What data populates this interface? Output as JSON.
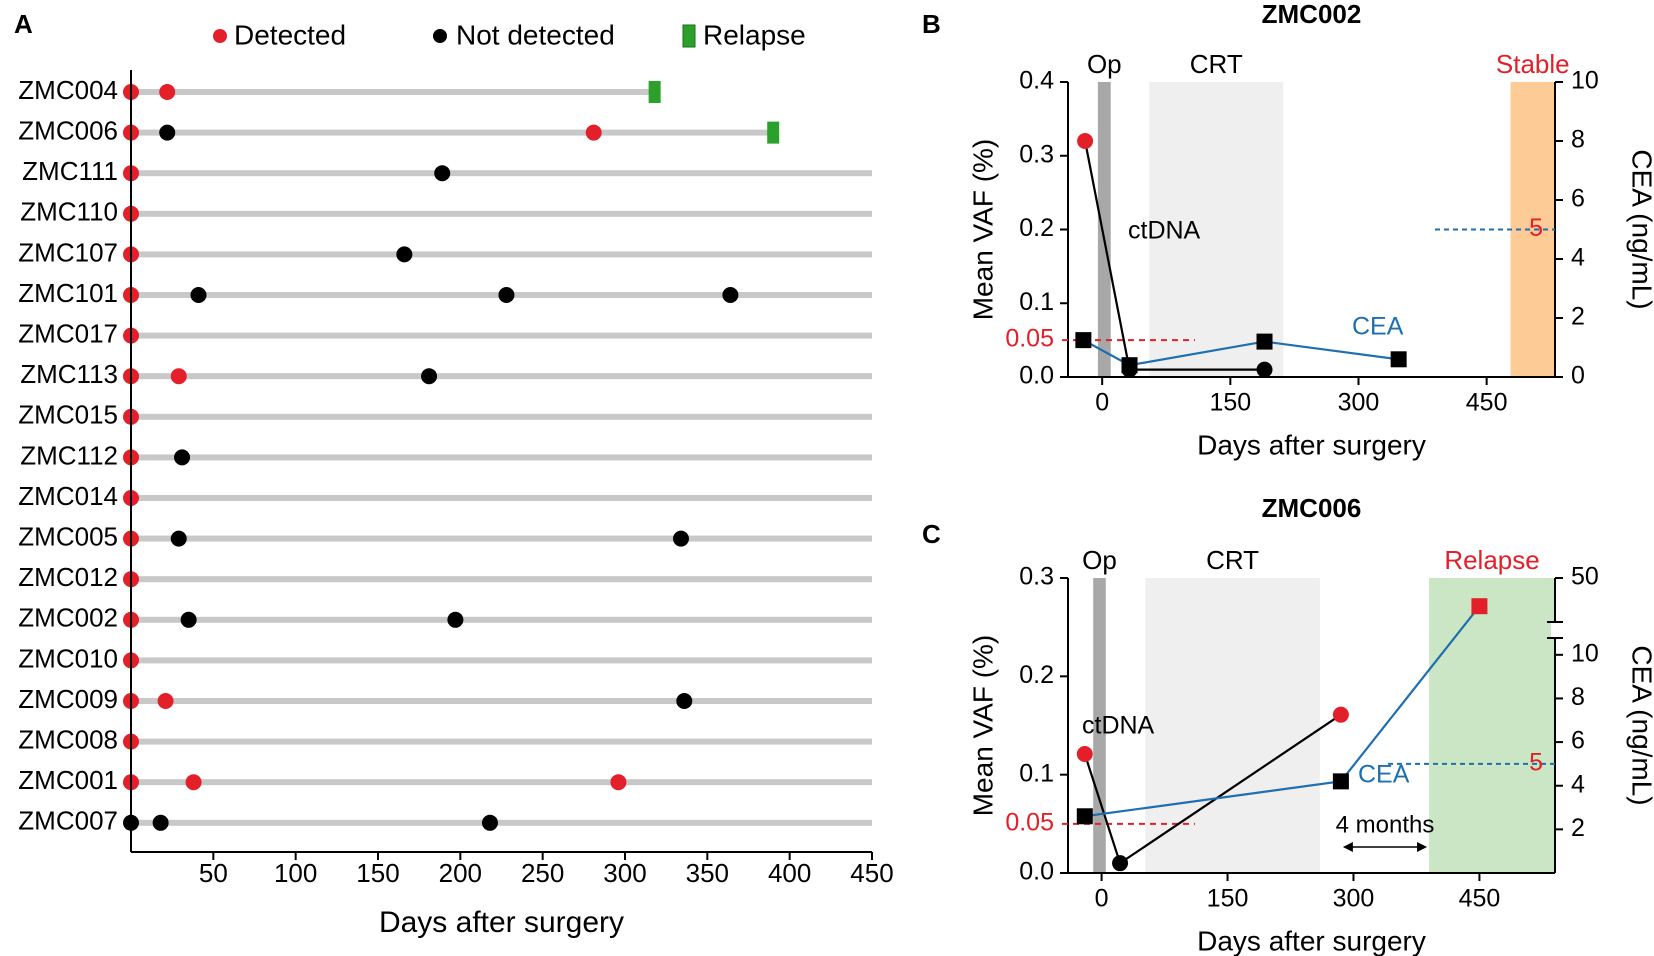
{
  "colors": {
    "detected": "#e3202a",
    "not_detected": "#000000",
    "relapse_marker": "#2ca02c",
    "track": "#c8c8c8",
    "op_shade": "#a8a8a8",
    "crt_shade": "#efefef",
    "stable_shade": "#fdcb96",
    "relapse_shade": "#cbe6c4",
    "cea_line": "#1f6fb0",
    "red_text": "#e3202a"
  },
  "chart_data": [
    {
      "panel": "A",
      "type": "scatter",
      "title": "",
      "xlabel": "Days after surgery",
      "ylabel": "",
      "xlim": [
        -1,
        450
      ],
      "xticks": [
        50,
        100,
        150,
        200,
        250,
        300,
        350,
        400,
        450
      ],
      "grid": false,
      "legend_position": "top",
      "legend": [
        {
          "label": "Detected",
          "symbol": "circle",
          "color": "#e3202a"
        },
        {
          "label": "Not detected",
          "symbol": "circle",
          "color": "#000000"
        },
        {
          "label": "Relapse",
          "symbol": "bar",
          "color": "#2ca02c"
        }
      ],
      "patients": [
        {
          "id": "ZMC004",
          "track_end": 318,
          "relapse": 318,
          "detected": [
            0,
            22
          ],
          "not_detected": []
        },
        {
          "id": "ZMC006",
          "track_end": 390,
          "relapse": 390,
          "detected": [
            0,
            281
          ],
          "not_detected": [
            22
          ]
        },
        {
          "id": "ZMC111",
          "track_end": 450,
          "relapse": null,
          "detected": [
            0
          ],
          "not_detected": [
            189
          ]
        },
        {
          "id": "ZMC110",
          "track_end": 450,
          "relapse": null,
          "detected": [
            0
          ],
          "not_detected": []
        },
        {
          "id": "ZMC107",
          "track_end": 450,
          "relapse": null,
          "detected": [
            0
          ],
          "not_detected": [
            166
          ]
        },
        {
          "id": "ZMC101",
          "track_end": 450,
          "relapse": null,
          "detected": [
            0
          ],
          "not_detected": [
            41,
            228,
            364
          ]
        },
        {
          "id": "ZMC017",
          "track_end": 450,
          "relapse": null,
          "detected": [
            0
          ],
          "not_detected": []
        },
        {
          "id": "ZMC113",
          "track_end": 450,
          "relapse": null,
          "detected": [
            0,
            29
          ],
          "not_detected": [
            181
          ]
        },
        {
          "id": "ZMC015",
          "track_end": 450,
          "relapse": null,
          "detected": [
            0
          ],
          "not_detected": []
        },
        {
          "id": "ZMC112",
          "track_end": 450,
          "relapse": null,
          "detected": [
            0
          ],
          "not_detected": [
            31
          ]
        },
        {
          "id": "ZMC014",
          "track_end": 450,
          "relapse": null,
          "detected": [
            0
          ],
          "not_detected": []
        },
        {
          "id": "ZMC005",
          "track_end": 450,
          "relapse": null,
          "detected": [
            0
          ],
          "not_detected": [
            29,
            334
          ]
        },
        {
          "id": "ZMC012",
          "track_end": 450,
          "relapse": null,
          "detected": [
            0
          ],
          "not_detected": []
        },
        {
          "id": "ZMC002",
          "track_end": 450,
          "relapse": null,
          "detected": [
            0
          ],
          "not_detected": [
            35,
            197
          ]
        },
        {
          "id": "ZMC010",
          "track_end": 450,
          "relapse": null,
          "detected": [
            0
          ],
          "not_detected": []
        },
        {
          "id": "ZMC009",
          "track_end": 450,
          "relapse": null,
          "detected": [
            0,
            21
          ],
          "not_detected": [
            336
          ]
        },
        {
          "id": "ZMC008",
          "track_end": 450,
          "relapse": null,
          "detected": [
            0
          ],
          "not_detected": []
        },
        {
          "id": "ZMC001",
          "track_end": 450,
          "relapse": null,
          "detected": [
            0,
            38,
            296
          ],
          "not_detected": []
        },
        {
          "id": "ZMC007",
          "track_end": 450,
          "relapse": null,
          "detected": [],
          "not_detected": [
            0,
            18,
            218
          ]
        }
      ]
    },
    {
      "panel": "B",
      "type": "line",
      "title": "ZMC002",
      "xlabel": "Days after surgery",
      "ylabel": "Mean VAF (%)",
      "y2label": "CEA (ng/mL)",
      "xlim": [
        -40,
        530
      ],
      "xticks": [
        0,
        150,
        300,
        450
      ],
      "ylim": [
        0,
        0.4
      ],
      "yticks": [
        "0.0",
        "0.1",
        "0.2",
        "0.3",
        "0.4"
      ],
      "y2lim": [
        0,
        10
      ],
      "y2ticks": [
        "0",
        "2",
        "4",
        "6",
        "8",
        "10"
      ],
      "vaf_threshold_label": "0.05",
      "vaf_threshold": 0.05,
      "cea_threshold_label": "5",
      "cea_threshold": 5,
      "periods": [
        {
          "label": "Op",
          "start": -5,
          "end": 10,
          "kind": "op"
        },
        {
          "label": "CRT",
          "start": 55,
          "end": 212,
          "kind": "crt"
        },
        {
          "label": "Stable",
          "start": 478,
          "end": 530,
          "kind": "stable"
        }
      ],
      "series": [
        {
          "name": "ctDNA",
          "axis": "left",
          "marker": "circle",
          "x": [
            -20,
            32,
            190
          ],
          "y": [
            0.32,
            0.01,
            0.01
          ],
          "marker_colors": [
            "#e3202a",
            "#000000",
            "#000000"
          ]
        },
        {
          "name": "CEA",
          "axis": "right",
          "marker": "square",
          "x": [
            -22,
            32,
            190,
            347
          ],
          "y": [
            1.25,
            0.4,
            1.2,
            0.6
          ]
        }
      ]
    },
    {
      "panel": "C",
      "type": "line",
      "title": "ZMC006",
      "xlabel": "Days after surgery",
      "ylabel": "Mean VAF (%)",
      "y2label": "CEA (ng/mL)",
      "xlim": [
        -40,
        540
      ],
      "xticks": [
        0,
        150,
        300,
        450
      ],
      "ylim": [
        0,
        0.3
      ],
      "yticks": [
        "0.0",
        "0.1",
        "0.2",
        "0.3"
      ],
      "y2ticks": [
        "2",
        "4",
        "6",
        "8",
        "10",
        "50"
      ],
      "y2_note": "broken axis: 0-11 linear, upper segment up to 50",
      "vaf_threshold_label": "0.05",
      "vaf_threshold": 0.05,
      "cea_threshold_label": "5",
      "cea_threshold": 5,
      "interval_annotation": {
        "label": "4 months",
        "start": 285,
        "end": 390
      },
      "periods": [
        {
          "label": "Op",
          "start": -10,
          "end": 5,
          "kind": "op"
        },
        {
          "label": "CRT",
          "start": 52,
          "end": 260,
          "kind": "crt"
        },
        {
          "label": "Relapse",
          "start": 390,
          "end": 540,
          "kind": "relapse"
        }
      ],
      "series": [
        {
          "name": "ctDNA",
          "axis": "left",
          "marker": "circle",
          "x": [
            -20,
            22,
            285
          ],
          "y": [
            0.121,
            0.01,
            0.161
          ],
          "marker_colors": [
            "#e3202a",
            "#000000",
            "#e3202a"
          ]
        },
        {
          "name": "CEA",
          "axis": "right",
          "marker": "square",
          "x": [
            -20,
            285,
            450
          ],
          "y": [
            2.6,
            4.2,
            30
          ],
          "marker_colors": [
            "#000000",
            "#000000",
            "#e3202a"
          ]
        }
      ]
    }
  ],
  "panel_labels": [
    "A",
    "B",
    "C"
  ]
}
